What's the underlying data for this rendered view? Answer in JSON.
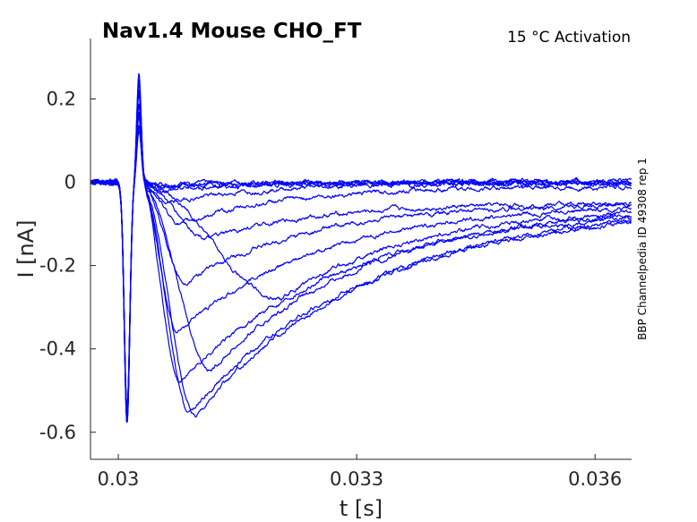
{
  "chart_data": {
    "type": "line",
    "title": "Nav1.4  Mouse  CHO_FT",
    "subtitle": "15 °C  Activation",
    "xlabel": "t [s]",
    "ylabel": "I [nA]",
    "side_note": "BBP Channelpedia ID 49308 rep 1",
    "xlim": [
      0.02965,
      0.03646
    ],
    "ylim": [
      -0.665,
      0.345
    ],
    "xticks": [
      0.03,
      0.033,
      0.036
    ],
    "xtick_labels": [
      "0.03",
      "0.033",
      "0.036"
    ],
    "yticks": [
      0.2,
      0,
      -0.2,
      -0.4,
      -0.6
    ],
    "ytick_labels": [
      "0.2",
      "0",
      "-0.2",
      "-0.4",
      "-0.6"
    ],
    "grid": false,
    "line_color": "#0000ff",
    "transient": {
      "dip_time": 0.03011,
      "dip_value": -0.58,
      "spike_time": 0.03026,
      "spike_value": 0.26
    },
    "series": [
      {
        "peak_time": 0.0304,
        "peak_value": -0.004,
        "end_value": 0.0
      },
      {
        "peak_time": 0.03045,
        "peak_value": -0.008,
        "end_value": 0.002
      },
      {
        "peak_time": 0.0305,
        "peak_value": -0.012,
        "end_value": -0.002
      },
      {
        "peak_time": 0.03055,
        "peak_value": -0.02,
        "end_value": 0.001
      },
      {
        "peak_time": 0.0306,
        "peak_value": -0.05,
        "end_value": -0.002
      },
      {
        "peak_time": 0.0308,
        "peak_value": -0.1,
        "end_value": -0.01
      },
      {
        "peak_time": 0.03115,
        "peak_value": -0.135,
        "end_value": -0.05
      },
      {
        "peak_time": 0.03085,
        "peak_value": -0.24,
        "end_value": -0.05
      },
      {
        "peak_time": 0.03205,
        "peak_value": -0.28,
        "end_value": -0.06
      },
      {
        "peak_time": 0.03075,
        "peak_value": -0.36,
        "end_value": -0.05
      },
      {
        "peak_time": 0.03118,
        "peak_value": -0.45,
        "end_value": -0.05
      },
      {
        "peak_time": 0.03078,
        "peak_value": -0.48,
        "end_value": -0.06
      },
      {
        "peak_time": 0.0309,
        "peak_value": -0.555,
        "end_value": -0.06
      },
      {
        "peak_time": 0.03098,
        "peak_value": -0.56,
        "end_value": -0.05
      }
    ]
  }
}
